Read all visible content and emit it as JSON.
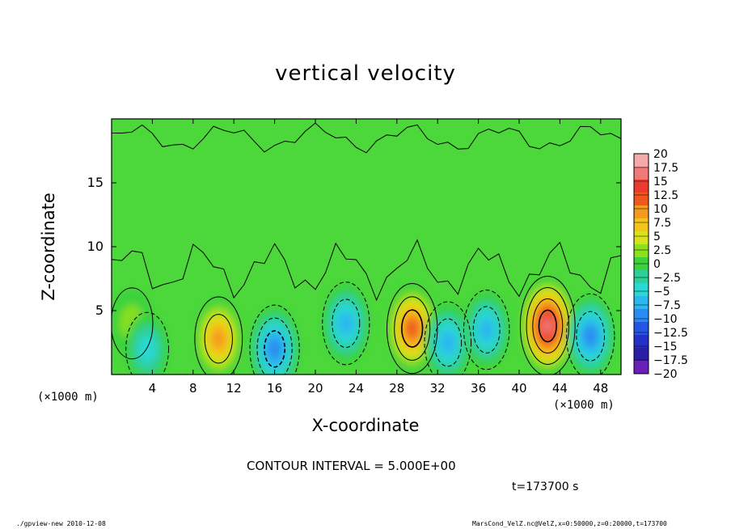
{
  "chart_data": {
    "type": "heatmap",
    "title": "vertical velocity",
    "xlabel": "X-coordinate",
    "ylabel": "Z-coordinate",
    "x_unit": "(×1000 m)",
    "y_unit": "(×1000 m)",
    "xlim": [
      0,
      50
    ],
    "ylim": [
      0,
      20
    ],
    "x_ticks": [
      4,
      8,
      12,
      16,
      20,
      24,
      28,
      32,
      36,
      40,
      44,
      48
    ],
    "y_ticks": [
      5,
      10,
      15
    ],
    "colorbar": {
      "labels": [
        "20",
        "17.5",
        "15",
        "12.5",
        "10",
        "7.5",
        "5",
        "2.5",
        "0",
        "−2.5",
        "−5",
        "−7.5",
        "−10",
        "−12.5",
        "−15",
        "−17.5",
        "−20"
      ],
      "colors": [
        "#f6a9a9",
        "#f07a78",
        "#ec3a2e",
        "#f0561e",
        "#f49a1e",
        "#f6c418",
        "#d9e21a",
        "#8ce01e",
        "#3bd23e",
        "#2fcf99",
        "#2ad9d4",
        "#2bb8ee",
        "#2a8bf0",
        "#2456e6",
        "#2431c8",
        "#2a1ea6",
        "#6a20b8"
      ]
    },
    "cells": [
      {
        "x": 2,
        "z": 4,
        "w": 3.0
      },
      {
        "x": 3.5,
        "z": 2,
        "w": -4.0
      },
      {
        "x": 10.5,
        "z": 2.8,
        "w": 9.0
      },
      {
        "x": 16,
        "z": 2,
        "w": -11.0
      },
      {
        "x": 23,
        "z": 4,
        "w": -8.5
      },
      {
        "x": 29.5,
        "z": 3.6,
        "w": 12.0
      },
      {
        "x": 33,
        "z": 2.5,
        "w": -8.0
      },
      {
        "x": 36.8,
        "z": 3.5,
        "w": -7.0
      },
      {
        "x": 42.8,
        "z": 3.8,
        "w": 16.5
      },
      {
        "x": 47,
        "z": 3,
        "w": -9.5
      }
    ],
    "contour_interval": "CONTOUR INTERVAL = 5.000E+00",
    "time": "t=173700 s"
  },
  "footer": {
    "left": "./gpview-new   2010-12-08",
    "right": "MarsCond_VelZ.nc@VelZ,x=0:50000,z=0:20000,t=173700"
  }
}
